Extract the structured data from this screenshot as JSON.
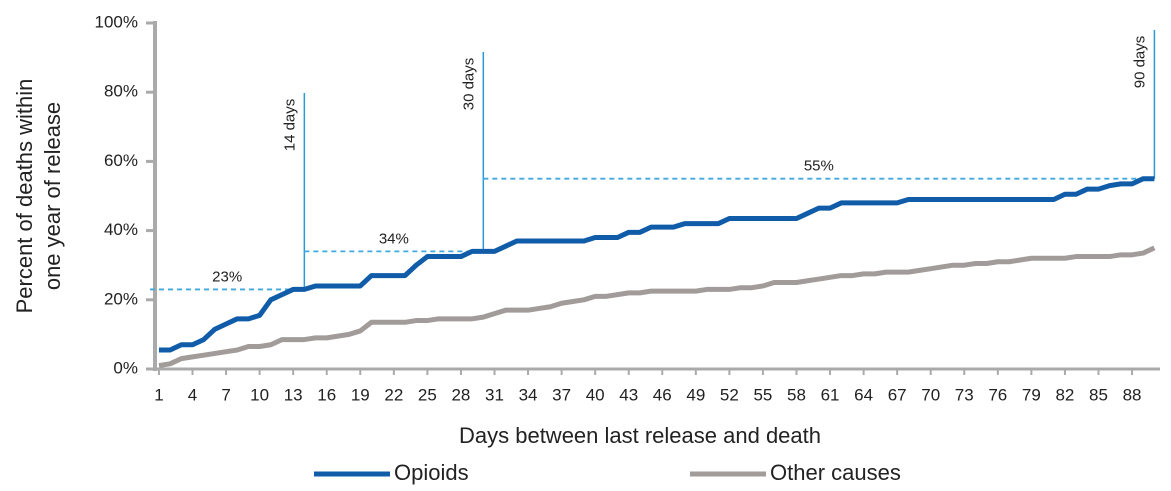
{
  "chart_data": {
    "type": "line",
    "x_label": "Days between last release and death",
    "y_label": [
      "Percent of deaths within",
      "one year of release"
    ],
    "x": [
      1,
      2,
      3,
      4,
      5,
      6,
      7,
      8,
      9,
      10,
      11,
      12,
      13,
      14,
      15,
      16,
      17,
      18,
      19,
      20,
      21,
      22,
      23,
      24,
      25,
      26,
      27,
      28,
      29,
      30,
      31,
      32,
      33,
      34,
      35,
      36,
      37,
      38,
      39,
      40,
      41,
      42,
      43,
      44,
      45,
      46,
      47,
      48,
      49,
      50,
      51,
      52,
      53,
      54,
      55,
      56,
      57,
      58,
      59,
      60,
      61,
      62,
      63,
      64,
      65,
      66,
      67,
      68,
      69,
      70,
      71,
      72,
      73,
      74,
      75,
      76,
      77,
      78,
      79,
      80,
      81,
      82,
      83,
      84,
      85,
      86,
      87,
      88,
      89,
      90
    ],
    "xlim": [
      0.2,
      90.5
    ],
    "xticks": [
      1,
      4,
      7,
      10,
      13,
      16,
      19,
      22,
      25,
      28,
      31,
      34,
      37,
      40,
      43,
      46,
      49,
      52,
      55,
      58,
      61,
      64,
      67,
      70,
      73,
      76,
      79,
      82,
      85,
      88
    ],
    "ylim": [
      0,
      100
    ],
    "yticks": [
      {
        "value": 0,
        "label": "0%"
      },
      {
        "value": 20,
        "label": "20%"
      },
      {
        "value": 40,
        "label": "40%"
      },
      {
        "value": 60,
        "label": "60%"
      },
      {
        "value": 80,
        "label": "80%"
      },
      {
        "value": 100,
        "label": "100%"
      }
    ],
    "series": [
      {
        "name": "Opioids",
        "color": "#105ca8",
        "values": [
          5.5,
          5.5,
          7,
          7,
          8.5,
          11.5,
          13,
          14.5,
          14.5,
          15.5,
          20,
          21.5,
          23,
          23,
          24,
          24,
          24,
          24,
          24,
          27,
          27,
          27,
          27,
          30,
          32.5,
          32.5,
          32.5,
          32.5,
          34,
          34,
          34,
          35.5,
          37,
          37,
          37,
          37,
          37,
          37,
          37,
          38,
          38,
          38,
          39.5,
          39.5,
          41,
          41,
          41,
          42,
          42,
          42,
          42,
          43.5,
          43.5,
          43.5,
          43.5,
          43.5,
          43.5,
          43.5,
          45,
          46.5,
          46.5,
          48,
          48,
          48,
          48,
          48,
          48,
          49,
          49,
          49,
          49,
          49,
          49,
          49,
          49,
          49,
          49,
          49,
          49,
          49,
          49,
          50.5,
          50.5,
          52,
          52,
          53,
          53.5,
          53.5,
          55,
          55
        ]
      },
      {
        "name": "Other causes",
        "color": "#a19c99",
        "values": [
          1,
          1.5,
          3,
          3.5,
          4,
          4.5,
          5,
          5.5,
          6.5,
          6.5,
          7,
          8.5,
          8.5,
          8.5,
          9,
          9,
          9.5,
          10,
          11,
          13.5,
          13.5,
          13.5,
          13.5,
          14,
          14,
          14.5,
          14.5,
          14.5,
          14.5,
          15,
          16,
          17,
          17,
          17,
          17.5,
          18,
          19,
          19.5,
          20,
          21,
          21,
          21.5,
          22,
          22,
          22.5,
          22.5,
          22.5,
          22.5,
          22.5,
          23,
          23,
          23,
          23.5,
          23.5,
          24,
          25,
          25,
          25,
          25.5,
          26,
          26.5,
          27,
          27,
          27.5,
          27.5,
          28,
          28,
          28,
          28.5,
          29,
          29.5,
          30,
          30,
          30.5,
          30.5,
          31,
          31,
          31.5,
          32,
          32,
          32,
          32,
          32.5,
          32.5,
          32.5,
          32.5,
          33,
          33,
          33.5,
          35
        ]
      }
    ],
    "annotations": [
      {
        "day": 14,
        "label": "14 days",
        "level": 23,
        "level_label": "23%"
      },
      {
        "day": 30,
        "label": "30 days",
        "level": 34,
        "level_label": "34%"
      },
      {
        "day": 90,
        "label": "90 days",
        "level": 55,
        "level_label": "55%"
      }
    ]
  }
}
